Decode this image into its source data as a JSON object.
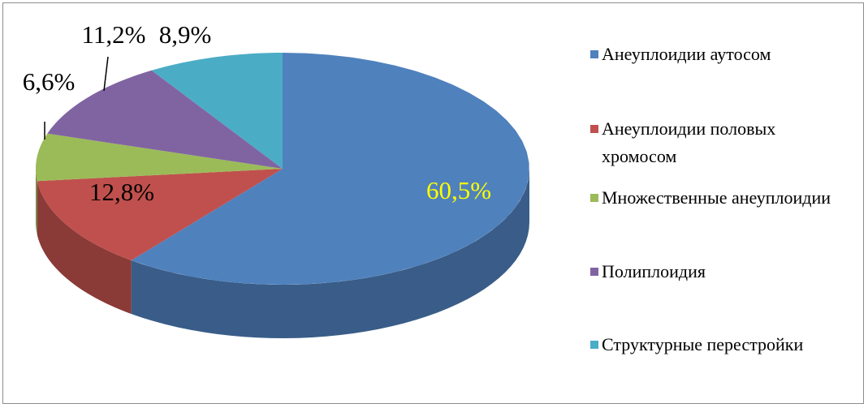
{
  "chart_data": {
    "type": "pie",
    "categories": [
      "Анеуплоидии аутосом",
      "Анеуплоидии половых хромосом",
      "Множественные анеуплоидии",
      "Полиплоидия",
      "Структурные перестройки"
    ],
    "values": [
      60.5,
      12.8,
      6.6,
      11.2,
      8.9
    ],
    "value_labels": [
      "60,5%",
      "12,8%",
      "6,6%",
      "11,2%",
      "8,9%"
    ],
    "colors": [
      "#4f81bd",
      "#c0504d",
      "#9bbb59",
      "#8064a2",
      "#4bacc6"
    ],
    "value_label_colors": [
      "#ffff00",
      "#000000",
      "#000000",
      "#000000",
      "#000000"
    ],
    "legend": "right"
  }
}
